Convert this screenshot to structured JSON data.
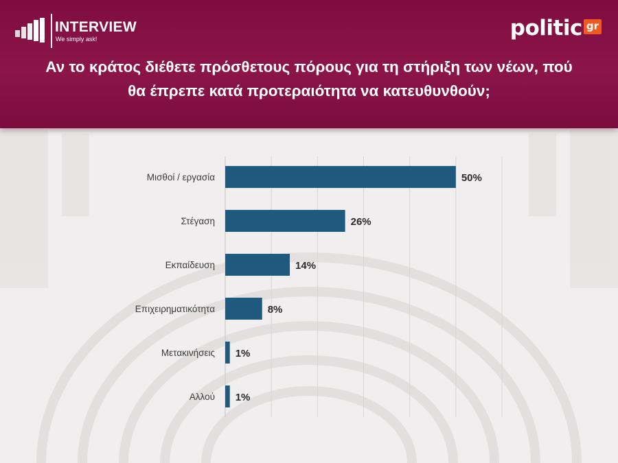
{
  "header": {
    "brand_left": "INTERVIEW",
    "brand_left_tagline": "We simply ask!",
    "brand_right": "politic",
    "brand_right_suffix": "gr",
    "title": "Αν το κράτος διέθετε πρόσθετους πόρους για τη στήριξη των νέων, πού θα έπρεπε κατά προτεραιότητα να κατευθυνθούν;"
  },
  "colors": {
    "header": "#8a1346",
    "bar": "#1f5a7e",
    "accent": "#f05a22"
  },
  "chart_data": {
    "type": "bar",
    "orientation": "horizontal",
    "title": "Αν το κράτος διέθετε πρόσθετους πόρους για τη στήριξη των νέων, πού θα έπρεπε κατά προτεραιότητα να κατευθυνθούν;",
    "categories": [
      "Μισθοί / εργασία",
      "Στέγαση",
      "Εκπαίδευση",
      "Επιχειρηματικότητα",
      "Μετακινήσεις",
      "Αλλού"
    ],
    "values": [
      50,
      26,
      14,
      8,
      1,
      1
    ],
    "value_labels": [
      "50%",
      "26%",
      "14%",
      "8%",
      "1%",
      "1%"
    ],
    "unit": "%",
    "xlim": [
      0,
      60
    ],
    "grid": true,
    "xlabel": "",
    "ylabel": ""
  }
}
